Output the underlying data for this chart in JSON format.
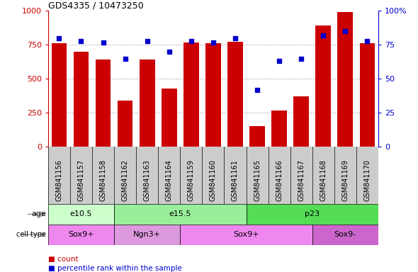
{
  "title": "GDS4335 / 10473250",
  "samples": [
    "GSM841156",
    "GSM841157",
    "GSM841158",
    "GSM841162",
    "GSM841163",
    "GSM841164",
    "GSM841159",
    "GSM841160",
    "GSM841161",
    "GSM841165",
    "GSM841166",
    "GSM841167",
    "GSM841168",
    "GSM841169",
    "GSM841170"
  ],
  "counts": [
    760,
    700,
    640,
    340,
    640,
    430,
    770,
    760,
    775,
    155,
    265,
    370,
    890,
    990,
    760
  ],
  "percentiles": [
    80,
    78,
    77,
    65,
    78,
    70,
    78,
    77,
    80,
    42,
    63,
    65,
    82,
    85,
    78
  ],
  "ylim_left": [
    0,
    1000
  ],
  "ylim_right": [
    0,
    100
  ],
  "yticks_left": [
    0,
    250,
    500,
    750,
    1000
  ],
  "ytick_labels_left": [
    "0",
    "250",
    "500",
    "750",
    "1000"
  ],
  "yticks_right": [
    0,
    25,
    50,
    75,
    100
  ],
  "ytick_labels_right": [
    "0",
    "25",
    "50",
    "75",
    "100%"
  ],
  "bar_color": "#cc0000",
  "dot_color": "#0000cc",
  "age_groups": [
    {
      "label": "e10.5",
      "start": 0,
      "end": 3,
      "color": "#ccffcc"
    },
    {
      "label": "e15.5",
      "start": 3,
      "end": 9,
      "color": "#99ee99"
    },
    {
      "label": "p23",
      "start": 9,
      "end": 15,
      "color": "#55dd55"
    }
  ],
  "cell_type_groups": [
    {
      "label": "Sox9+",
      "start": 0,
      "end": 3,
      "color": "#ee88ee"
    },
    {
      "label": "Ngn3+",
      "start": 3,
      "end": 6,
      "color": "#dd99dd"
    },
    {
      "label": "Sox9+",
      "start": 6,
      "end": 12,
      "color": "#ee88ee"
    },
    {
      "label": "Sox9-",
      "start": 12,
      "end": 15,
      "color": "#cc66cc"
    }
  ],
  "legend_count_color": "#cc0000",
  "legend_pct_color": "#0000cc",
  "grid_color": "#888888",
  "bg_color": "#ffffff",
  "sample_label_bg": "#cccccc",
  "left_axis_color": "#cc0000",
  "right_axis_color": "#0000cc",
  "arrow_color": "#888888",
  "label_fontsize": 8,
  "tick_fontsize": 7
}
